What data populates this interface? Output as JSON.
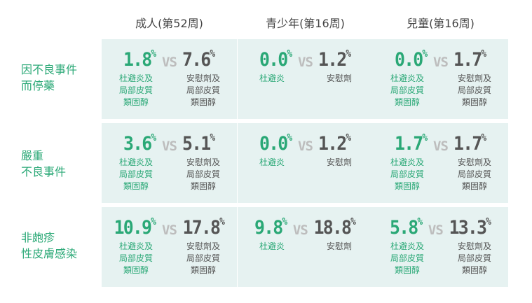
{
  "columns": [
    "成人(第52周)",
    "青少年(第16周)",
    "兒童(第16周)"
  ],
  "rows": [
    {
      "label_lines": [
        "因不良事件",
        "而停藥"
      ],
      "cells": [
        {
          "left_value": "1.8",
          "right_value": "7.6",
          "left_desc": [
            "杜避炎及",
            "局部皮質",
            "類固醇"
          ],
          "right_desc": [
            "安慰劑及",
            "局部皮質",
            "類固醇"
          ]
        },
        {
          "left_value": "0.0",
          "right_value": "1.2",
          "left_desc": [
            "杜避炎"
          ],
          "right_desc": [
            "安慰劑"
          ]
        },
        {
          "left_value": "0.0",
          "right_value": "1.7",
          "left_desc": [
            "杜避炎及",
            "局部皮質",
            "類固醇"
          ],
          "right_desc": [
            "安慰劑及",
            "局部皮質",
            "類固醇"
          ]
        }
      ]
    },
    {
      "label_lines": [
        "嚴重",
        "不良事件"
      ],
      "cells": [
        {
          "left_value": "3.6",
          "right_value": "5.1",
          "left_desc": [
            "杜避炎及",
            "局部皮質",
            "類固醇"
          ],
          "right_desc": [
            "安慰劑及",
            "局部皮質",
            "類固醇"
          ]
        },
        {
          "left_value": "0.0",
          "right_value": "1.2",
          "left_desc": [
            "杜避炎"
          ],
          "right_desc": [
            "安慰劑"
          ]
        },
        {
          "left_value": "1.7",
          "right_value": "1.7",
          "left_desc": [
            "杜避炎及",
            "局部皮質",
            "類固醇"
          ],
          "right_desc": [
            "安慰劑及",
            "局部皮質",
            "類固醇"
          ]
        }
      ]
    },
    {
      "label_lines": [
        "非皰疹",
        "性皮膚感染"
      ],
      "cells": [
        {
          "left_value": "10.9",
          "right_value": "17.8",
          "left_desc": [
            "杜避炎及",
            "局部皮質",
            "類固醇"
          ],
          "right_desc": [
            "安慰劑及",
            "局部皮質",
            "類固醇"
          ]
        },
        {
          "left_value": "9.8",
          "right_value": "18.8",
          "left_desc": [
            "杜避炎"
          ],
          "right_desc": [
            "安慰劑"
          ]
        },
        {
          "left_value": "5.8",
          "right_value": "13.3",
          "left_desc": [
            "杜避炎及",
            "局部皮質",
            "類固醇"
          ],
          "right_desc": [
            "安慰劑及",
            "局部皮質",
            "類固醇"
          ]
        }
      ]
    }
  ],
  "vs_label": "VS",
  "percent_sign": "%",
  "colors": {
    "accent_green": "#2aa876",
    "dark_text": "#555555",
    "vs_gray": "#bdbdbd",
    "cell_bg": "#e6f2f1"
  }
}
